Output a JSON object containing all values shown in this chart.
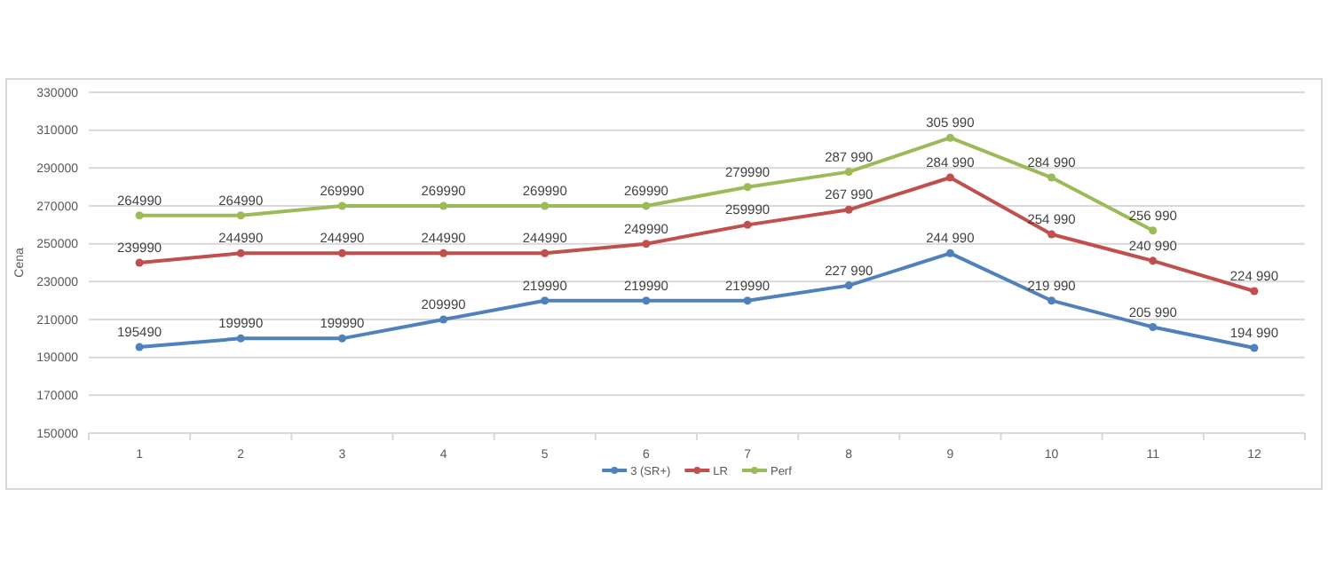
{
  "chart_data": {
    "type": "line",
    "ylabel": "Cena",
    "categories": [
      "1",
      "2",
      "3",
      "4",
      "5",
      "6",
      "7",
      "8",
      "9",
      "10",
      "11",
      "12"
    ],
    "ylim": [
      150000,
      330000
    ],
    "yticks": [
      150000,
      170000,
      190000,
      210000,
      230000,
      250000,
      270000,
      290000,
      310000,
      330000
    ],
    "grid": "y",
    "legend": "bottom",
    "marker": "circle",
    "line_style": "solid",
    "series": [
      {
        "name": "3 (SR+)",
        "color": "#4f81bd",
        "values": [
          195490,
          199990,
          199990,
          209990,
          219990,
          219990,
          219990,
          227990,
          244990,
          219990,
          205990,
          194990
        ],
        "value_labels": [
          "195490",
          "199990",
          "199990",
          "209990",
          "219990",
          "219990",
          "219990",
          "227 990",
          "244 990",
          "219 990",
          "205 990",
          "194 990"
        ]
      },
      {
        "name": "LR",
        "color": "#c0504d",
        "values": [
          239990,
          244990,
          244990,
          244990,
          244990,
          249990,
          259990,
          267990,
          284990,
          254990,
          240990,
          224990
        ],
        "value_labels": [
          "239990",
          "244990",
          "244990",
          "244990",
          "244990",
          "249990",
          "259990",
          "267 990",
          "284 990",
          "254 990",
          "240 990",
          "224 990"
        ]
      },
      {
        "name": "Perf",
        "color": "#9bbb59",
        "values": [
          264990,
          264990,
          269990,
          269990,
          269990,
          269990,
          279990,
          287990,
          305990,
          284990,
          256990,
          null
        ],
        "value_labels": [
          "264990",
          "264990",
          "269990",
          "269990",
          "269990",
          "269990",
          "279990",
          "287 990",
          "305 990",
          "284 990",
          "256 990",
          null
        ]
      }
    ]
  }
}
